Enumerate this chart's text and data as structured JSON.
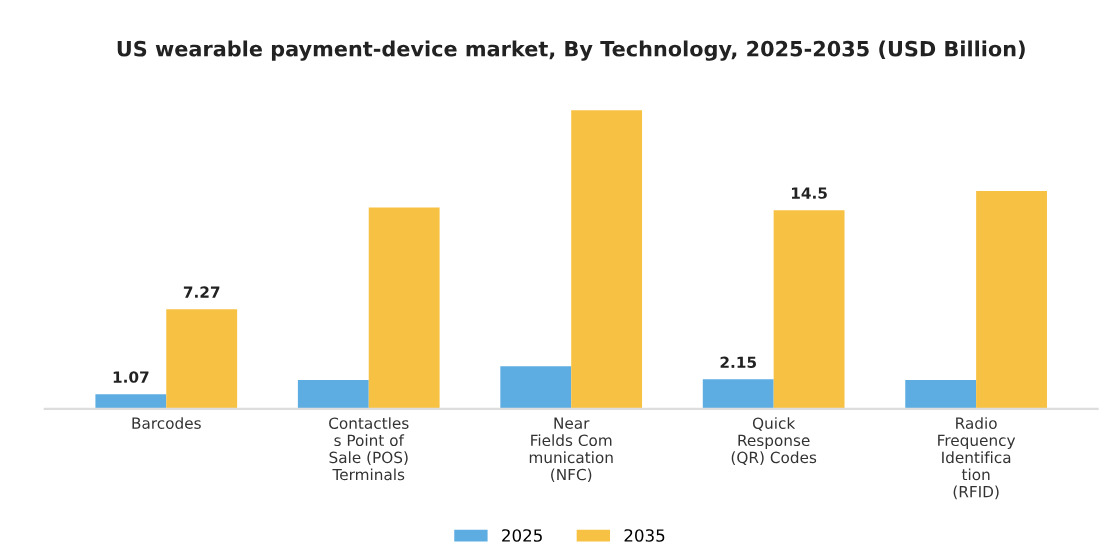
{
  "chart_data": {
    "type": "bar",
    "title": "US wearable payment-device market, By Technology, 2025-2035 (USD Billion)",
    "categories": [
      "Barcodes",
      "Contactles\ns Point of\nSale (POS)\nTerminals",
      "Near\nFields Com\nmunication\n(NFC)",
      "Quick\nResponse\n(QR) Codes",
      "Radio\nFrequency\nIdentifica\ntion\n(RFID)"
    ],
    "series": [
      {
        "name": "2025",
        "color": "#5dade2",
        "values": [
          1.07,
          2.1,
          3.1,
          2.15,
          2.1
        ],
        "value_labels": [
          "1.07",
          null,
          null,
          "2.15",
          null
        ]
      },
      {
        "name": "2035",
        "color": "#f7c244",
        "values": [
          7.27,
          14.7,
          21.8,
          14.5,
          15.9
        ],
        "value_labels": [
          "7.27",
          null,
          null,
          "14.5",
          null
        ]
      }
    ],
    "legend": "bottom",
    "grid": false
  }
}
